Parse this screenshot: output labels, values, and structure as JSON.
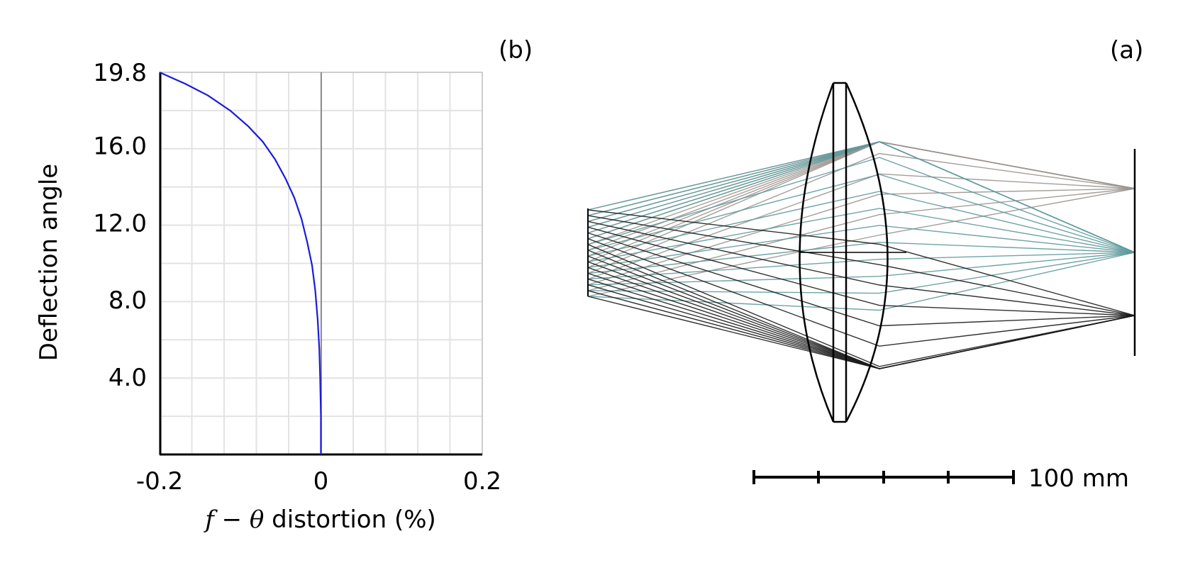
{
  "panel_b": {
    "label": "(b)",
    "ylabel": "Deflection angle",
    "xlabel_prefix": "f − θ",
    "xlabel_suffix": " distortion (%)",
    "curve_color": "#1a1adb",
    "chart_data": {
      "type": "line",
      "xlim": [
        -0.2,
        0.2
      ],
      "ylim": [
        0,
        19.8
      ],
      "xticks": [
        "-0.2",
        "0",
        "0.2"
      ],
      "yticks": [
        "19.8",
        "16.0",
        "12.0",
        "8.0",
        "4.0"
      ],
      "grid": true,
      "series": [
        {
          "x": [
            0,
            0,
            -0.001,
            -0.002,
            -0.004,
            -0.007,
            -0.011,
            -0.017,
            -0.024,
            -0.033,
            -0.044,
            -0.057,
            -0.072,
            -0.09,
            -0.112,
            -0.14,
            -0.168,
            -0.2
          ],
          "y": [
            0,
            2.0,
            4.0,
            5.5,
            7.0,
            8.5,
            9.8,
            11.0,
            12.2,
            13.3,
            14.3,
            15.3,
            16.2,
            17.0,
            17.8,
            18.6,
            19.2,
            19.8
          ]
        }
      ]
    }
  },
  "panel_a": {
    "label": "(a)",
    "scale_bar_label": "100 mm",
    "beam_colors": [
      "#9a948e",
      "#5f9a9c",
      "#1b1b1b"
    ]
  }
}
